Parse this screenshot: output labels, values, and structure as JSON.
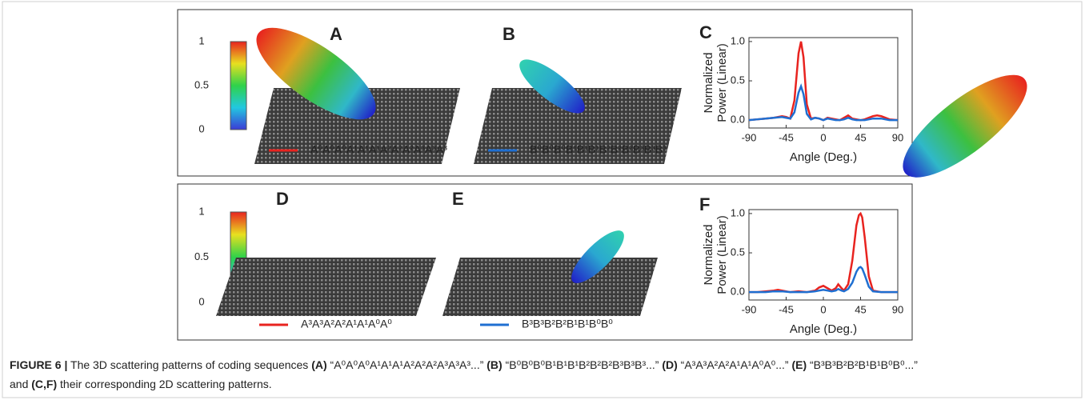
{
  "panels": [
    {
      "label": "A"
    },
    {
      "label": "B"
    },
    {
      "label": "D"
    },
    {
      "label": "E"
    }
  ],
  "colorbar": {
    "lim": [
      0,
      1
    ],
    "ticks": [
      0,
      0.5,
      1
    ]
  },
  "chart_data": [
    {
      "type": "line",
      "panel": "C",
      "xlabel": "Angle (Deg.)",
      "ylabel": [
        "Normalized",
        "Power (Linear)"
      ],
      "x": [
        -90,
        -80,
        -70,
        -60,
        -50,
        -45,
        -40,
        -35,
        -30,
        -27,
        -24,
        -20,
        -15,
        -10,
        -5,
        0,
        5,
        10,
        15,
        20,
        25,
        30,
        35,
        40,
        45,
        50,
        55,
        60,
        65,
        70,
        75,
        80,
        90
      ],
      "series": [
        {
          "name": "A⁰A⁰A⁰A¹A¹A¹A²A²A²A³A³A³",
          "color": "#e8231f",
          "values": [
            0,
            0.01,
            0.02,
            0.03,
            0.05,
            0.04,
            0.02,
            0.25,
            0.85,
            1.0,
            0.8,
            0.2,
            0.02,
            0.03,
            0.02,
            0,
            0.03,
            0.02,
            0.01,
            0,
            0.03,
            0.06,
            0.02,
            0.01,
            0,
            0.01,
            0.03,
            0.05,
            0.06,
            0.05,
            0.03,
            0.01,
            0
          ]
        },
        {
          "name": "B⁰B⁰B⁰B¹B¹B¹B²B²B²B³B³B³",
          "color": "#1f6fd1",
          "values": [
            0,
            0.01,
            0.02,
            0.03,
            0.04,
            0.03,
            0.02,
            0.1,
            0.35,
            0.43,
            0.33,
            0.08,
            0.01,
            0.03,
            0.02,
            0,
            0.02,
            0.01,
            0,
            0,
            0.01,
            0.03,
            0.01,
            0,
            0,
            0,
            0.01,
            0.02,
            0.02,
            0.02,
            0.01,
            0,
            0
          ]
        }
      ],
      "xlim": [
        -90,
        90
      ],
      "ylim": [
        -0.1,
        1.05
      ],
      "xticks": [
        -90,
        -45,
        0,
        45,
        90
      ],
      "yticks": [
        {
          "value": 0,
          "label": "0.0"
        },
        {
          "value": 0.5,
          "label": "0.5"
        },
        {
          "value": 1,
          "label": "1.0"
        }
      ]
    },
    {
      "type": "line",
      "panel": "F",
      "xlabel": "Angle (Deg.)",
      "ylabel": [
        "Normalized",
        "Power (Linear)"
      ],
      "x": [
        -90,
        -80,
        -70,
        -60,
        -55,
        -50,
        -40,
        -30,
        -20,
        -10,
        -5,
        0,
        5,
        10,
        15,
        18,
        22,
        25,
        30,
        35,
        40,
        43,
        45,
        47,
        50,
        55,
        60,
        70,
        80,
        90
      ],
      "series": [
        {
          "name": "A³A³A²A²A¹A¹A⁰A⁰",
          "color": "#e8231f",
          "values": [
            0,
            0,
            0.01,
            0.02,
            0.03,
            0.02,
            0,
            0.01,
            0,
            0.02,
            0.06,
            0.08,
            0.05,
            0.02,
            0.05,
            0.1,
            0.05,
            0.02,
            0.1,
            0.4,
            0.85,
            0.98,
            1.0,
            0.95,
            0.7,
            0.2,
            0.02,
            0,
            0,
            0
          ]
        },
        {
          "name": "B³B³B²B²B¹B¹B⁰B⁰",
          "color": "#1f6fd1",
          "values": [
            0,
            0,
            0,
            0.01,
            0.01,
            0.01,
            0,
            0,
            0,
            0.01,
            0.02,
            0.03,
            0.02,
            0.01,
            0.02,
            0.04,
            0.02,
            0.01,
            0.04,
            0.12,
            0.26,
            0.31,
            0.32,
            0.3,
            0.22,
            0.07,
            0.01,
            0,
            0,
            0
          ]
        }
      ],
      "xlim": [
        -90,
        90
      ],
      "ylim": [
        -0.1,
        1.05
      ],
      "xticks": [
        -90,
        -45,
        0,
        45,
        90
      ],
      "yticks": [
        {
          "value": 0,
          "label": "0.0"
        },
        {
          "value": 0.5,
          "label": "0.5"
        },
        {
          "value": 1,
          "label": "1.0"
        }
      ]
    }
  ],
  "caption": [
    {
      "text": "FIGURE 6 |",
      "bold": true
    },
    {
      "text": " The 3D scattering patterns of coding sequences ",
      "bold": false
    },
    {
      "text": "(A)",
      "bold": true
    },
    {
      "text": " “A⁰A⁰A⁰A¹A¹A¹A²A²A²A³A³A³...” ",
      "bold": false
    },
    {
      "text": "(B)",
      "bold": true
    },
    {
      "text": " “B⁰B⁰B⁰B¹B¹B¹B²B²B²B³B³B³...” ",
      "bold": false
    },
    {
      "text": "(D)",
      "bold": true
    },
    {
      "text": " “A³A³A²A²A¹A¹A⁰A⁰...” ",
      "bold": false
    },
    {
      "text": "(E)",
      "bold": true
    },
    {
      "text": " “B³B³B²B²B¹B¹B⁰B⁰...” and ",
      "bold": false
    },
    {
      "text": "(C,F)",
      "bold": true
    },
    {
      "text": " their corresponding 2D scattering patterns.",
      "bold": false
    }
  ]
}
